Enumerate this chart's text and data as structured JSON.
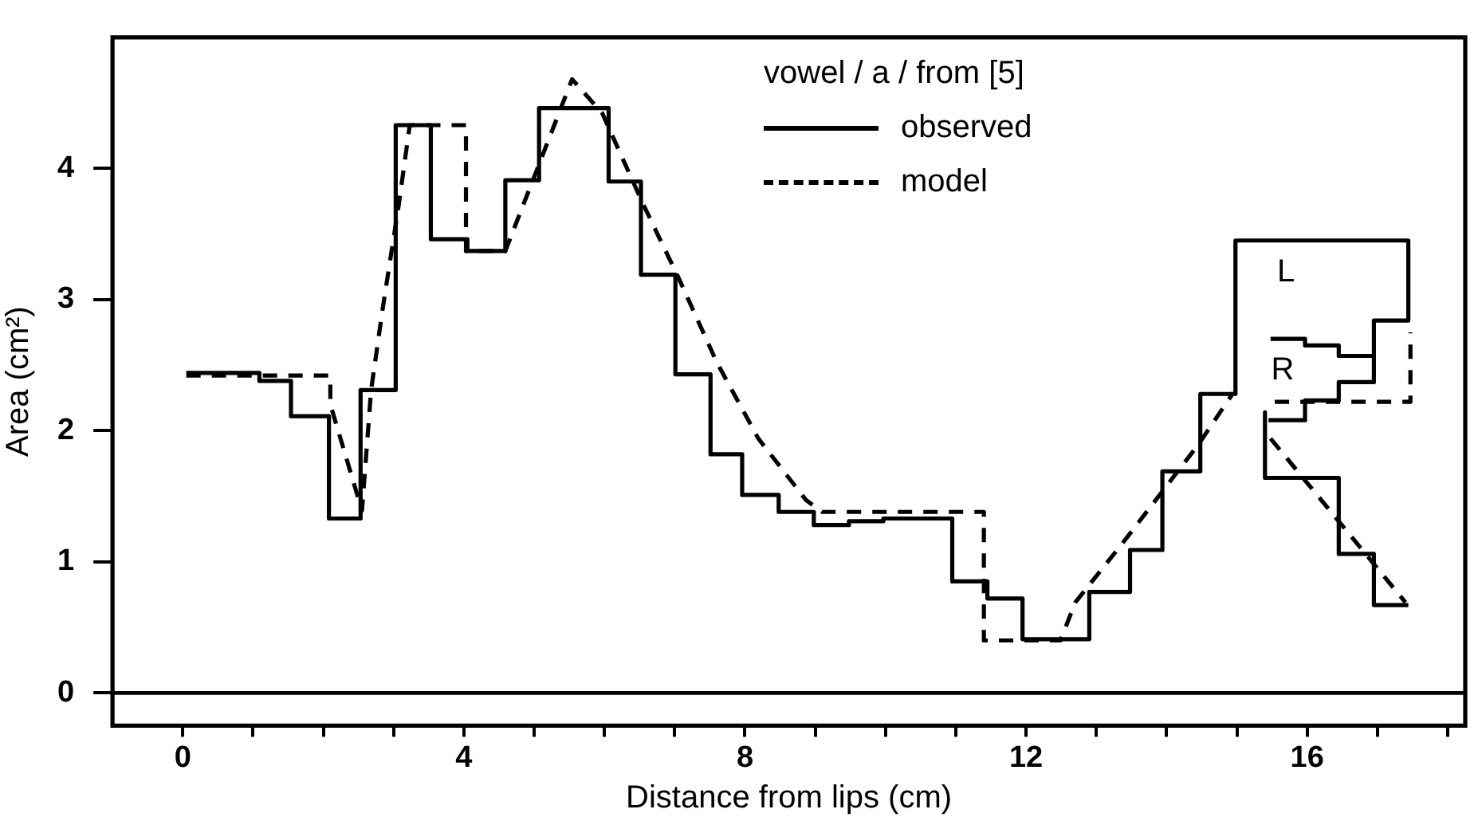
{
  "chart_data": {
    "type": "line",
    "xlabel": "Distance from lips (cm)",
    "ylabel": "Area (cm²)",
    "legend_title": "vowel / a / from [5]",
    "legend": "top right",
    "marker": "none",
    "grid": false,
    "xlim": [
      -1,
      18.25
    ],
    "ylim": [
      -0.25,
      5
    ],
    "xticks": [
      0,
      {
        "value": 1,
        "label": null
      },
      {
        "value": 2,
        "label": null
      },
      {
        "value": 3,
        "label": null
      },
      4,
      {
        "value": 5,
        "label": null
      },
      {
        "value": 6,
        "label": null
      },
      {
        "value": 7,
        "label": null
      },
      8,
      {
        "value": 9,
        "label": null
      },
      {
        "value": 10,
        "label": null
      },
      {
        "value": 11,
        "label": null
      },
      12,
      {
        "value": 13,
        "label": null
      },
      {
        "value": 14,
        "label": null
      },
      {
        "value": 15,
        "label": null
      },
      16,
      {
        "value": 17,
        "label": null
      },
      {
        "value": 18,
        "label": null
      }
    ],
    "yticks": [
      0,
      1,
      2,
      3,
      4
    ],
    "ref_lines": [
      {
        "axis": "y",
        "value": 0,
        "color": "#000000",
        "line_style": "solid"
      }
    ],
    "annotations": [
      {
        "text": "L",
        "x": 15.7,
        "y": 3.45
      },
      {
        "text": "R",
        "x": 15.65,
        "y": 2.7
      }
    ],
    "series": [
      {
        "name": "observed",
        "color": "#000000",
        "line_style": "solid",
        "x": [
          0.05,
          1.09,
          1.09,
          1.54,
          1.54,
          2.08,
          2.08,
          2.53,
          2.53,
          3.03,
          3.03,
          3.53,
          3.53,
          4.05,
          4.05,
          4.59,
          4.59,
          5.07,
          5.07,
          6.06,
          6.06,
          6.52,
          6.52,
          7.01,
          7.01,
          7.51,
          7.51,
          7.96,
          7.96,
          8.48,
          8.48,
          8.98,
          8.98,
          9.48,
          9.48,
          9.97,
          9.97,
          10.95,
          10.95,
          11.45,
          11.45,
          11.95,
          11.95,
          12.9,
          12.9,
          13.48,
          13.48,
          13.94,
          13.94,
          14.48,
          14.48,
          14.98,
          14.98,
          17.44,
          17.44,
          16.95,
          16.95,
          16.45,
          16.45,
          15.97,
          15.97,
          15.45
        ],
        "values": [
          2.44,
          2.44,
          2.38,
          2.38,
          2.11,
          2.11,
          1.33,
          1.33,
          2.31,
          2.31,
          4.33,
          4.33,
          3.46,
          3.46,
          3.37,
          3.37,
          3.91,
          3.91,
          4.46,
          4.46,
          3.9,
          3.9,
          3.19,
          3.19,
          2.43,
          2.43,
          1.82,
          1.82,
          1.51,
          1.51,
          1.38,
          1.38,
          1.28,
          1.28,
          1.31,
          1.31,
          1.33,
          1.33,
          0.85,
          0.85,
          0.72,
          0.72,
          0.41,
          0.41,
          0.77,
          0.77,
          1.09,
          1.09,
          1.69,
          1.69,
          2.28,
          2.28,
          3.45,
          3.45,
          2.84,
          2.84,
          2.37,
          2.37,
          2.23,
          2.23,
          2.08,
          2.08
        ]
      },
      {
        "color": "#000000",
        "line_style": "solid",
        "x": [
          15.48,
          15.97,
          15.97,
          16.45,
          16.45,
          16.95
        ],
        "values": [
          2.7,
          2.7,
          2.65,
          2.65,
          2.57,
          2.57
        ]
      },
      {
        "color": "#000000",
        "line_style": "solid",
        "x": [
          15.4,
          15.4,
          16.45,
          16.45,
          16.95,
          16.95,
          17.44
        ],
        "values": [
          2.14,
          1.64,
          1.64,
          1.06,
          1.06,
          0.67,
          0.67
        ]
      },
      {
        "name": "model",
        "color": "#000000",
        "line_style": "dashed",
        "x": [
          0.05,
          2.1,
          2.1,
          2.55,
          2.68,
          2.85,
          3.07,
          3.23,
          4.03,
          4.03,
          4.59,
          5.54,
          5.97,
          6.54,
          7.06,
          7.6,
          8.19,
          8.87,
          9.1,
          11.4,
          11.4,
          12.49,
          12.7,
          13.4,
          14.46,
          14.95
        ],
        "values": [
          2.42,
          2.42,
          2.2,
          1.39,
          2.31,
          2.95,
          3.71,
          4.33,
          4.33,
          3.37,
          3.37,
          4.68,
          4.42,
          3.74,
          3.16,
          2.52,
          1.94,
          1.47,
          1.38,
          1.38,
          0.4,
          0.4,
          0.69,
          1.16,
          1.9,
          2.29
        ]
      },
      {
        "color": "#000000",
        "line_style": "dashed",
        "x": [
          15.54,
          17.47,
          17.47
        ],
        "values": [
          2.22,
          2.22,
          2.75
        ]
      },
      {
        "color": "#000000",
        "line_style": "dashed",
        "x": [
          15.48,
          17.4
        ],
        "values": [
          1.94,
          0.69
        ]
      }
    ]
  }
}
